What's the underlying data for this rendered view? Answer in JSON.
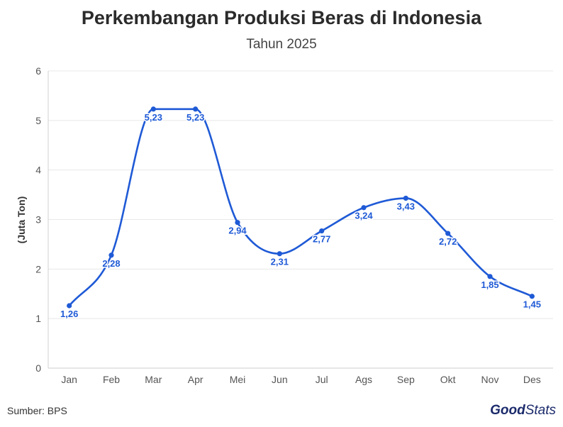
{
  "chart_data": {
    "type": "line",
    "title": "Perkembangan Produksi Beras di Indonesia",
    "subtitle": "Tahun 2025",
    "ylabel": "(Juta Ton)",
    "xlabel": "",
    "categories": [
      "Jan",
      "Feb",
      "Mar",
      "Apr",
      "Mei",
      "Jun",
      "Jul",
      "Ags",
      "Sep",
      "Okt",
      "Nov",
      "Des"
    ],
    "values": [
      1.26,
      2.28,
      5.23,
      5.23,
      2.94,
      2.31,
      2.77,
      3.24,
      3.43,
      2.72,
      1.85,
      1.45
    ],
    "data_labels": [
      "1,26",
      "2,28",
      "5,23",
      "5,23",
      "2,94",
      "2,31",
      "2,77",
      "3,24",
      "3,43",
      "2,72",
      "1,85",
      "1,45"
    ],
    "ylim": [
      0,
      6
    ],
    "yticks": [
      0,
      1,
      2,
      3,
      4,
      5,
      6
    ],
    "grid": true,
    "smooth": true,
    "color": "#1f5ad6"
  },
  "footer": {
    "source": "Sumber: BPS",
    "brand_part1": "Good",
    "brand_part2": "Stats"
  }
}
